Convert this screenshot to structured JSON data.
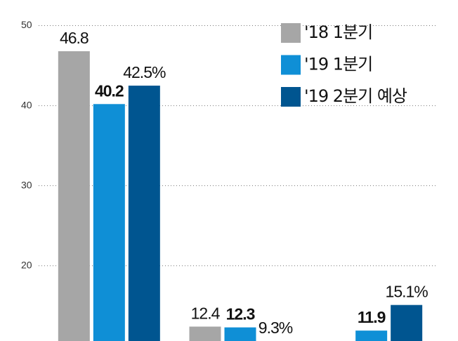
{
  "chart_data": {
    "type": "bar",
    "categories": [
      null,
      null,
      null
    ],
    "series": [
      {
        "name": "'18 1분기",
        "color": "#a6a6a6",
        "values": [
          46.8,
          12.4,
          null
        ]
      },
      {
        "name": "'19 1분기",
        "color": "#0f8fd6",
        "values": [
          40.2,
          12.3,
          11.9
        ],
        "bold": true
      },
      {
        "name": "'19 2분기 예상",
        "color": "#005590",
        "values": [
          42.5,
          9.3,
          15.1
        ],
        "value_labels": [
          "42.5%",
          "9.3%",
          "15.1%"
        ]
      }
    ],
    "ylim": [
      10.6,
      53.2
    ],
    "yticks": [
      20,
      30,
      40,
      50
    ],
    "grid": true
  }
}
